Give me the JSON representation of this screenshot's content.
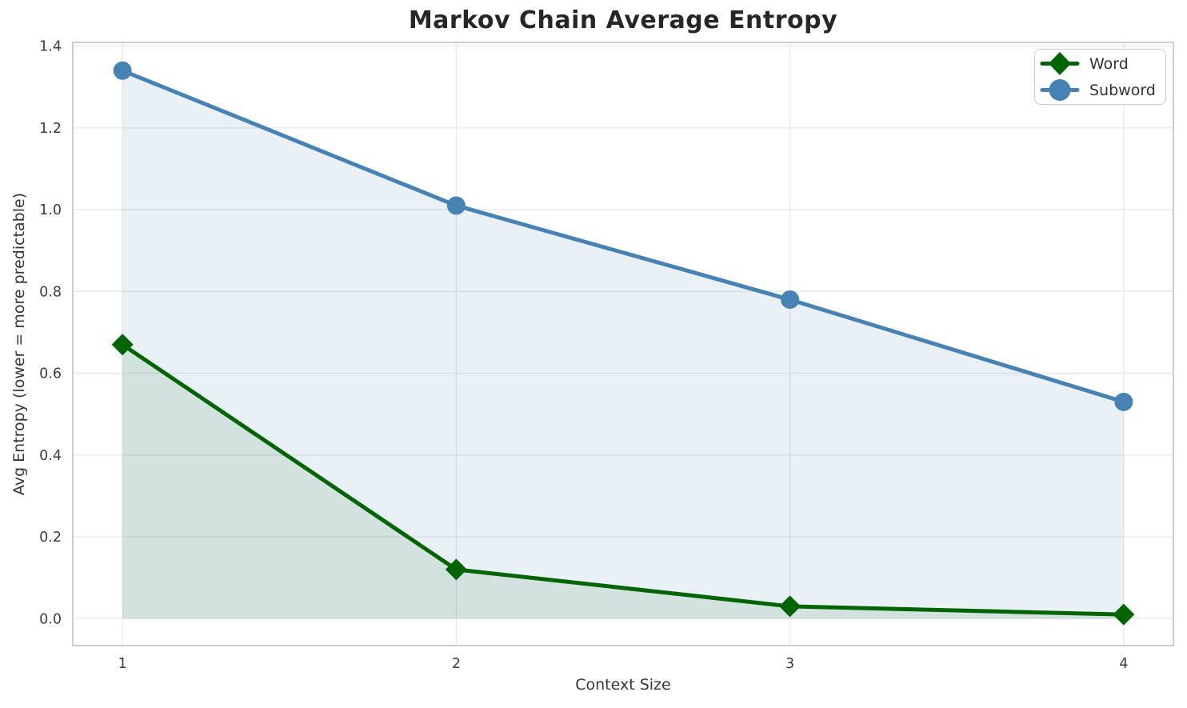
{
  "chart_data": {
    "type": "line",
    "title": "Markov Chain Average Entropy",
    "xlabel": "Context Size",
    "ylabel": "Avg Entropy (lower = more predictable)",
    "x": [
      1,
      2,
      3,
      4
    ],
    "xtick_labels": [
      "1",
      "2",
      "3",
      "4"
    ],
    "ytick_values": [
      0.0,
      0.2,
      0.4,
      0.6,
      0.8,
      1.0,
      1.2,
      1.4
    ],
    "ytick_labels": [
      "0.0",
      "0.2",
      "0.4",
      "0.6",
      "0.8",
      "1.0",
      "1.2",
      "1.4"
    ],
    "xlim": [
      0.851,
      4.149
    ],
    "ylim": [
      -0.066,
      1.409
    ],
    "grid": true,
    "legend_position": "upper right",
    "fill_baseline": 0,
    "series": [
      {
        "name": "Word",
        "values": [
          0.67,
          0.12,
          0.03,
          0.01
        ],
        "color": "#006400",
        "marker": "diamond",
        "fill_alpha": 0.1
      },
      {
        "name": "Subword",
        "values": [
          1.34,
          1.01,
          0.78,
          0.53
        ],
        "color": "#4682b4",
        "marker": "circle",
        "fill_alpha": 0.12
      }
    ],
    "style": {
      "grid_color": "#e8e8e8",
      "spine_color": "#c9c9c9",
      "tick_label_color": "#3d3d3d",
      "title_color": "#262626",
      "line_width": 5
    }
  }
}
